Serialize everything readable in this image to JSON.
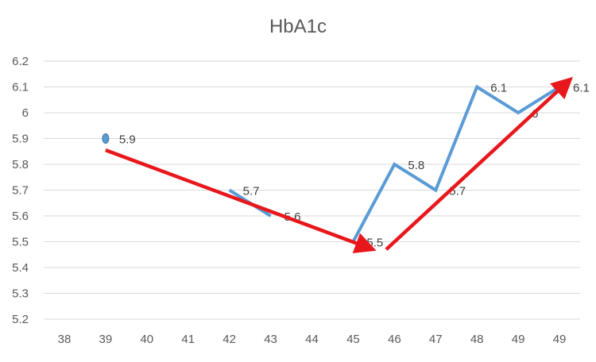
{
  "chart_data": {
    "type": "line",
    "title": "HbA1c",
    "xlabel": "",
    "ylabel": "",
    "categories": [
      "38",
      "39",
      "40",
      "41",
      "42",
      "43",
      "44",
      "45",
      "46",
      "47",
      "48",
      "49",
      "49"
    ],
    "ylim": [
      5.2,
      6.2
    ],
    "yticks": [
      "6.2",
      "6.1",
      "6",
      "5.9",
      "5.8",
      "5.7",
      "5.6",
      "5.5",
      "5.4",
      "5.3",
      "5.2"
    ],
    "grid": true,
    "legend": "none",
    "series": [
      {
        "color": "#5B9BD5",
        "values": [
          null,
          5.9,
          null,
          null,
          5.7,
          5.6,
          null,
          5.5,
          5.8,
          5.7,
          6.1,
          6.0,
          6.1
        ],
        "labels": [
          null,
          "5.9",
          null,
          null,
          "5.7",
          "5.6",
          null,
          "5.5",
          "5.8",
          "5.7",
          "6.1",
          "6",
          "6.1"
        ]
      }
    ],
    "annotations": {
      "arrow_color": "#E8171B",
      "trend_arrows": [
        {
          "from": {
            "x_index": 1,
            "y": 5.855
          },
          "to": {
            "x_index": 7.4,
            "y": 5.475
          }
        },
        {
          "from": {
            "x_index": 7.8,
            "y": 5.47
          },
          "to": {
            "x_index": 12.2,
            "y": 6.12
          }
        }
      ]
    }
  }
}
